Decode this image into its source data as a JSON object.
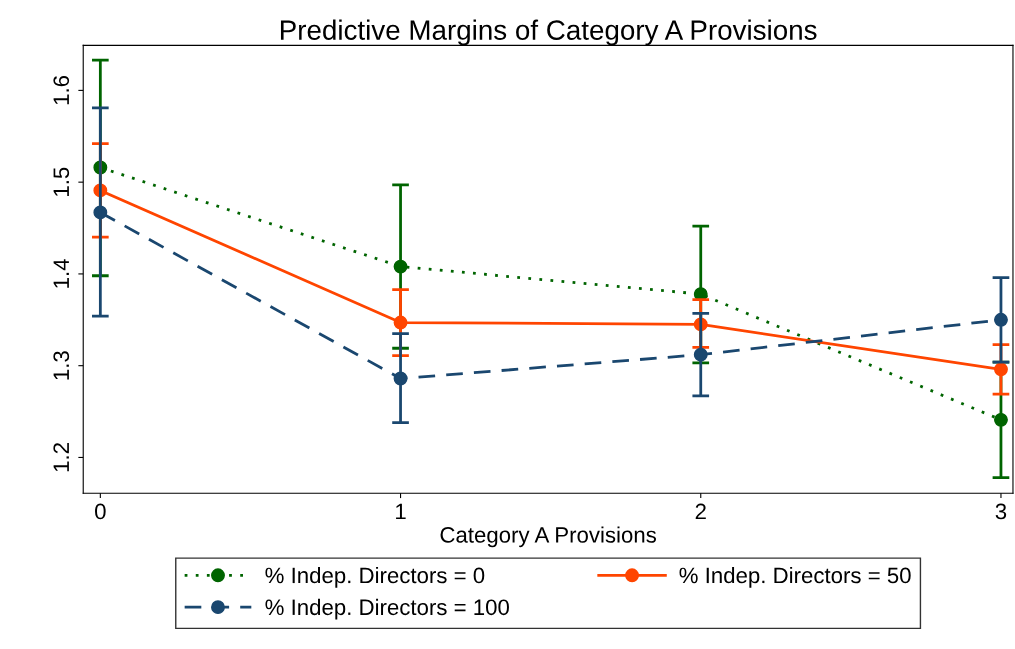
{
  "chart_data": {
    "type": "line",
    "title": "Predictive Margins of Category A Provisions",
    "xlabel": "Category A Provisions",
    "x": [
      0,
      1,
      2,
      3
    ],
    "xlim": [
      -0.057,
      3.04
    ],
    "xticks": [
      0,
      1,
      2,
      3
    ],
    "ylim": [
      1.161,
      1.649
    ],
    "yticks": [
      1.2,
      1.3,
      1.4,
      1.5,
      1.6
    ],
    "grid": false,
    "legend": "bottom",
    "marker": "circle",
    "series": [
      {
        "name": "% Indep. Directors = 0",
        "color": "#006400",
        "line_style": "dotted",
        "values": [
          1.516,
          1.408,
          1.378,
          1.241
        ],
        "errors": [
          [
            1.398,
            1.633
          ],
          [
            1.319,
            1.497
          ],
          [
            1.303,
            1.452
          ],
          [
            1.178,
            1.304
          ]
        ]
      },
      {
        "name": "% Indep. Directors = 50",
        "color": "#ff4500",
        "line_style": "solid",
        "values": [
          1.491,
          1.347,
          1.345,
          1.296
        ],
        "errors": [
          [
            1.44,
            1.542
          ],
          [
            1.311,
            1.383
          ],
          [
            1.32,
            1.372
          ],
          [
            1.269,
            1.323
          ]
        ]
      },
      {
        "name": "% Indep. Directors = 100",
        "color": "#1a476f",
        "line_style": "dashed",
        "values": [
          1.467,
          1.286,
          1.312,
          1.35
        ],
        "errors": [
          [
            1.354,
            1.581
          ],
          [
            1.238,
            1.335
          ],
          [
            1.267,
            1.357
          ],
          [
            1.304,
            1.396
          ]
        ]
      }
    ]
  }
}
